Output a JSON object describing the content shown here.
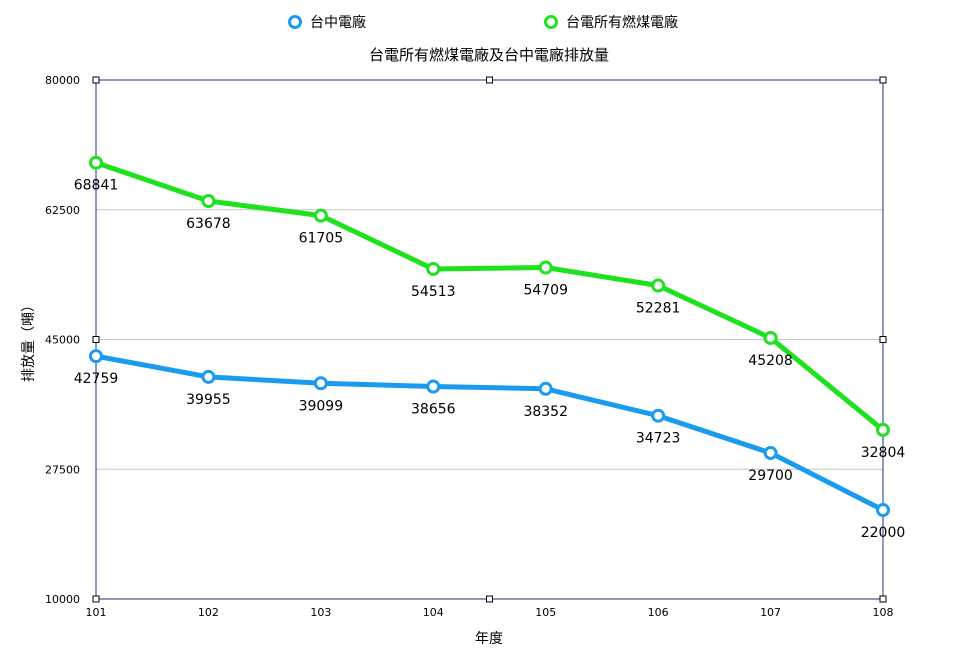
{
  "chart_data": {
    "type": "line",
    "title": "台電所有燃煤電廠及台中電廠排放量",
    "xlabel": "年度",
    "ylabel": "排放量（噸）",
    "categories": [
      "101",
      "102",
      "103",
      "104",
      "105",
      "106",
      "107",
      "108"
    ],
    "ylim": [
      10000,
      80000
    ],
    "yticks": [
      "10000",
      "27500",
      "45000",
      "62500",
      "80000"
    ],
    "grid": true,
    "legend_position": "top",
    "series": [
      {
        "name": "台中電廠",
        "color": "#1a9bf0",
        "values": [
          42759,
          39955,
          39099,
          38656,
          38352,
          34723,
          29700,
          22000
        ]
      },
      {
        "name": "台電所有燃煤電廠",
        "color": "#1ee21e",
        "values": [
          68841,
          63678,
          61705,
          54513,
          54709,
          52281,
          45208,
          32804
        ]
      }
    ]
  }
}
